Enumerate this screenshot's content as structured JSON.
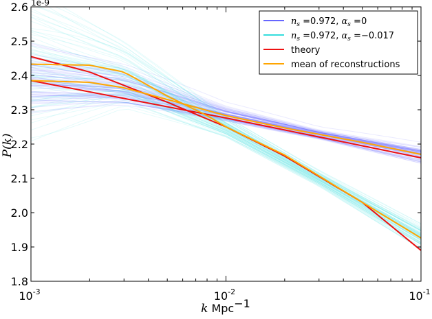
{
  "chart_data": {
    "type": "line",
    "xscale": "log",
    "xlim": [
      0.001,
      0.1
    ],
    "ylim": [
      1.8e-09,
      2.6e-09
    ],
    "y_offset_label": "1e-9",
    "xlabel_italic": "k",
    "xlabel_unit": "Mpc",
    "xlabel_exponent": "−1",
    "ylabel": "P(k)",
    "x_ticks": [
      {
        "value": 0.001,
        "base": "10",
        "exp": "-3"
      },
      {
        "value": 0.01,
        "base": "10",
        "exp": "-2"
      },
      {
        "value": 0.1,
        "base": "10",
        "exp": "-1"
      }
    ],
    "y_ticks": [
      {
        "value": 1.8,
        "label": "1.8"
      },
      {
        "value": 1.9,
        "label": "1.9"
      },
      {
        "value": 2.0,
        "label": "2.0"
      },
      {
        "value": 2.1,
        "label": "2.1"
      },
      {
        "value": 2.2,
        "label": "2.2"
      },
      {
        "value": 2.3,
        "label": "2.3"
      },
      {
        "value": 2.4,
        "label": "2.4"
      },
      {
        "value": 2.5,
        "label": "2.5"
      },
      {
        "value": 2.6,
        "label": "2.6"
      }
    ],
    "legend": {
      "position": "top-right",
      "entries": [
        {
          "color": "#6666ff",
          "parts": [
            {
              "t": "n",
              "m": true
            },
            {
              "t": "s",
              "m": true,
              "sub": true
            },
            {
              "t": " =0.972, "
            },
            {
              "t": "α",
              "m": true
            },
            {
              "t": "s",
              "m": true,
              "sub": true
            },
            {
              "t": " =0"
            }
          ]
        },
        {
          "color": "#33dddd",
          "parts": [
            {
              "t": "n",
              "m": true
            },
            {
              "t": "s",
              "m": true,
              "sub": true
            },
            {
              "t": " =0.972, "
            },
            {
              "t": "α",
              "m": true
            },
            {
              "t": "s",
              "m": true,
              "sub": true
            },
            {
              "t": " =−0.017"
            }
          ]
        },
        {
          "color": "#ee1111",
          "parts": [
            {
              "t": "theory"
            }
          ]
        },
        {
          "color": "#ffa500",
          "parts": [
            {
              "t": "mean of reconstructions"
            }
          ]
        }
      ]
    },
    "series": [
      {
        "name": "theory, alpha_s=0",
        "color": "#ee1111",
        "x": [
          0.001,
          0.01,
          0.1
        ],
        "y": [
          2.385,
          2.276,
          2.16
        ]
      },
      {
        "name": "theory, alpha_s=-0.017",
        "color": "#ee1111",
        "x": [
          0.001,
          0.002,
          0.005,
          0.01,
          0.02,
          0.05,
          0.1
        ],
        "y": [
          2.455,
          2.41,
          2.322,
          2.25,
          2.165,
          2.03,
          1.89
        ]
      },
      {
        "name": "mean of reconstructions, alpha_s=0",
        "color": "#ffa500",
        "x": [
          0.001,
          0.002,
          0.003,
          0.005,
          0.01,
          0.02,
          0.05,
          0.1
        ],
        "y": [
          2.385,
          2.38,
          2.364,
          2.33,
          2.283,
          2.247,
          2.205,
          2.17
        ]
      },
      {
        "name": "mean of reconstructions, alpha_s=-0.017",
        "color": "#ffa500",
        "x": [
          0.001,
          0.002,
          0.003,
          0.005,
          0.008,
          0.01,
          0.02,
          0.05,
          0.1
        ],
        "y": [
          2.433,
          2.43,
          2.41,
          2.34,
          2.283,
          2.25,
          2.168,
          2.03,
          1.926
        ]
      }
    ],
    "bands": [
      {
        "color": "#5555ff",
        "x": [
          0.001,
          0.003,
          0.01,
          0.03,
          0.1
        ],
        "center": [
          2.385,
          2.36,
          2.286,
          2.228,
          2.17
        ],
        "halfwidth": [
          0.15,
          0.09,
          0.035,
          0.02,
          0.035
        ]
      },
      {
        "color": "#33dddd",
        "x": [
          0.001,
          0.003,
          0.01,
          0.03,
          0.1
        ],
        "center": [
          2.44,
          2.405,
          2.25,
          2.1,
          1.93
        ],
        "halfwidth": [
          0.28,
          0.12,
          0.04,
          0.03,
          0.05
        ]
      }
    ]
  }
}
